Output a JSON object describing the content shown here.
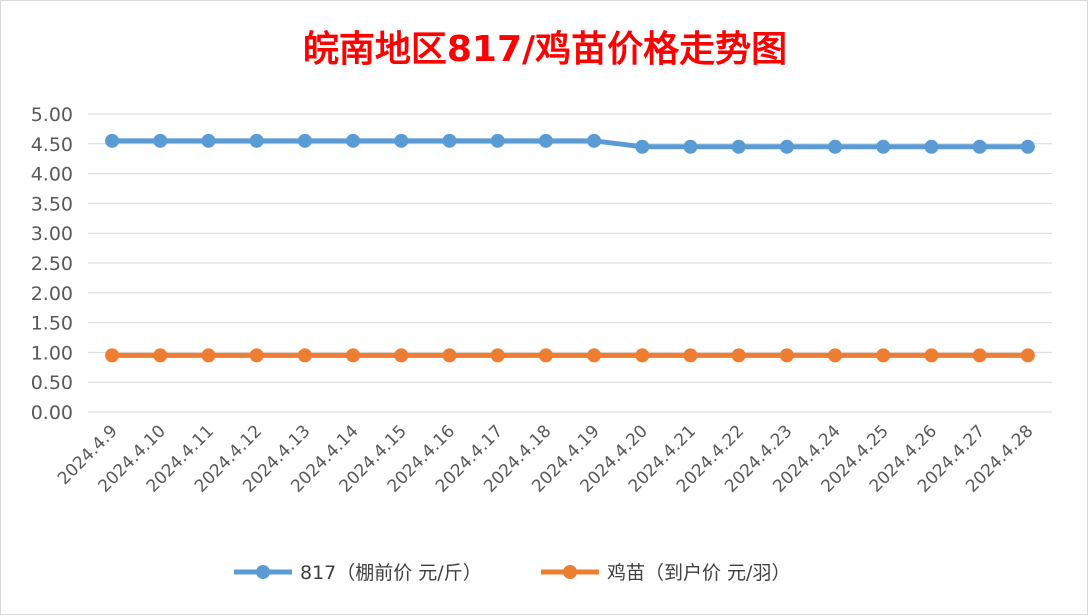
{
  "chart_data": {
    "type": "line",
    "title": "皖南地区817/鸡苗价格走势图",
    "xlabel": "",
    "ylabel": "",
    "ylim": [
      0,
      5
    ],
    "ystep": 0.5,
    "ytick_labels": [
      "0.00",
      "0.50",
      "1.00",
      "1.50",
      "2.00",
      "2.50",
      "3.00",
      "3.50",
      "4.00",
      "4.50",
      "5.00"
    ],
    "grid": true,
    "legend_position": "bottom",
    "categories": [
      "2024.4.9",
      "2024.4.10",
      "2024.4.11",
      "2024.4.12",
      "2024.4.13",
      "2024.4.14",
      "2024.4.15",
      "2024.4.16",
      "2024.4.17",
      "2024.4.18",
      "2024.4.19",
      "2024.4.20",
      "2024.4.21",
      "2024.4.22",
      "2024.4.23",
      "2024.4.24",
      "2024.4.25",
      "2024.4.26",
      "2024.4.27",
      "2024.4.28"
    ],
    "series": [
      {
        "name": "817（棚前价 元/斤）",
        "color": "#5b9bd5",
        "values": [
          4.55,
          4.55,
          4.55,
          4.55,
          4.55,
          4.55,
          4.55,
          4.55,
          4.55,
          4.55,
          4.55,
          4.45,
          4.45,
          4.45,
          4.45,
          4.45,
          4.45,
          4.45,
          4.45,
          4.45
        ]
      },
      {
        "name": "鸡苗（到户价 元/羽）",
        "color": "#ed7d31",
        "values": [
          0.95,
          0.95,
          0.95,
          0.95,
          0.95,
          0.95,
          0.95,
          0.95,
          0.95,
          0.95,
          0.95,
          0.95,
          0.95,
          0.95,
          0.95,
          0.95,
          0.95,
          0.95,
          0.95,
          0.95
        ]
      }
    ]
  }
}
